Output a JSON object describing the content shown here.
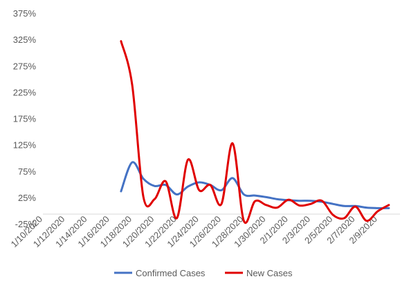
{
  "chart_data": {
    "type": "line",
    "title": "",
    "xlabel": "",
    "ylabel": "",
    "x_tick_labels": [
      "1/10/2020",
      "1/12/2020",
      "1/14/2020",
      "1/16/2020",
      "1/18/2020",
      "1/20/2020",
      "1/22/2020",
      "1/24/2020",
      "1/26/2020",
      "1/28/2020",
      "1/30/2020",
      "2/1/2020",
      "2/3/2020",
      "2/5/2020",
      "2/7/2020",
      "2/9/2020"
    ],
    "y_tick_labels": [
      "-25%",
      "25%",
      "75%",
      "125%",
      "175%",
      "225%",
      "275%",
      "325%",
      "375%"
    ],
    "ylim": [
      -25,
      375
    ],
    "grid": false,
    "legend_position": "bottom",
    "x": [
      "1/17/2020",
      "1/18/2020",
      "1/19/2020",
      "1/20/2020",
      "1/21/2020",
      "1/22/2020",
      "1/23/2020",
      "1/24/2020",
      "1/25/2020",
      "1/26/2020",
      "1/27/2020",
      "1/28/2020",
      "1/29/2020",
      "1/30/2020",
      "1/31/2020",
      "2/1/2020",
      "2/2/2020",
      "2/3/2020",
      "2/4/2020",
      "2/5/2020",
      "2/6/2020",
      "2/7/2020",
      "2/8/2020",
      "2/9/2020",
      "2/10/2020"
    ],
    "series": [
      {
        "name": "Confirmed Cases",
        "color": "#4472C4",
        "values": [
          38,
          93,
          62,
          48,
          50,
          32,
          47,
          55,
          50,
          40,
          63,
          32,
          30,
          27,
          23,
          21,
          20,
          20,
          18,
          14,
          10,
          10,
          7,
          6,
          6
        ]
      },
      {
        "name": "New Cases",
        "color": "#E00000",
        "values": [
          323,
          240,
          28,
          23,
          57,
          -13,
          98,
          40,
          50,
          14,
          129,
          -18,
          19,
          12,
          7,
          22,
          11,
          14,
          20,
          -7,
          -13,
          9,
          -18,
          0,
          12
        ]
      }
    ]
  }
}
